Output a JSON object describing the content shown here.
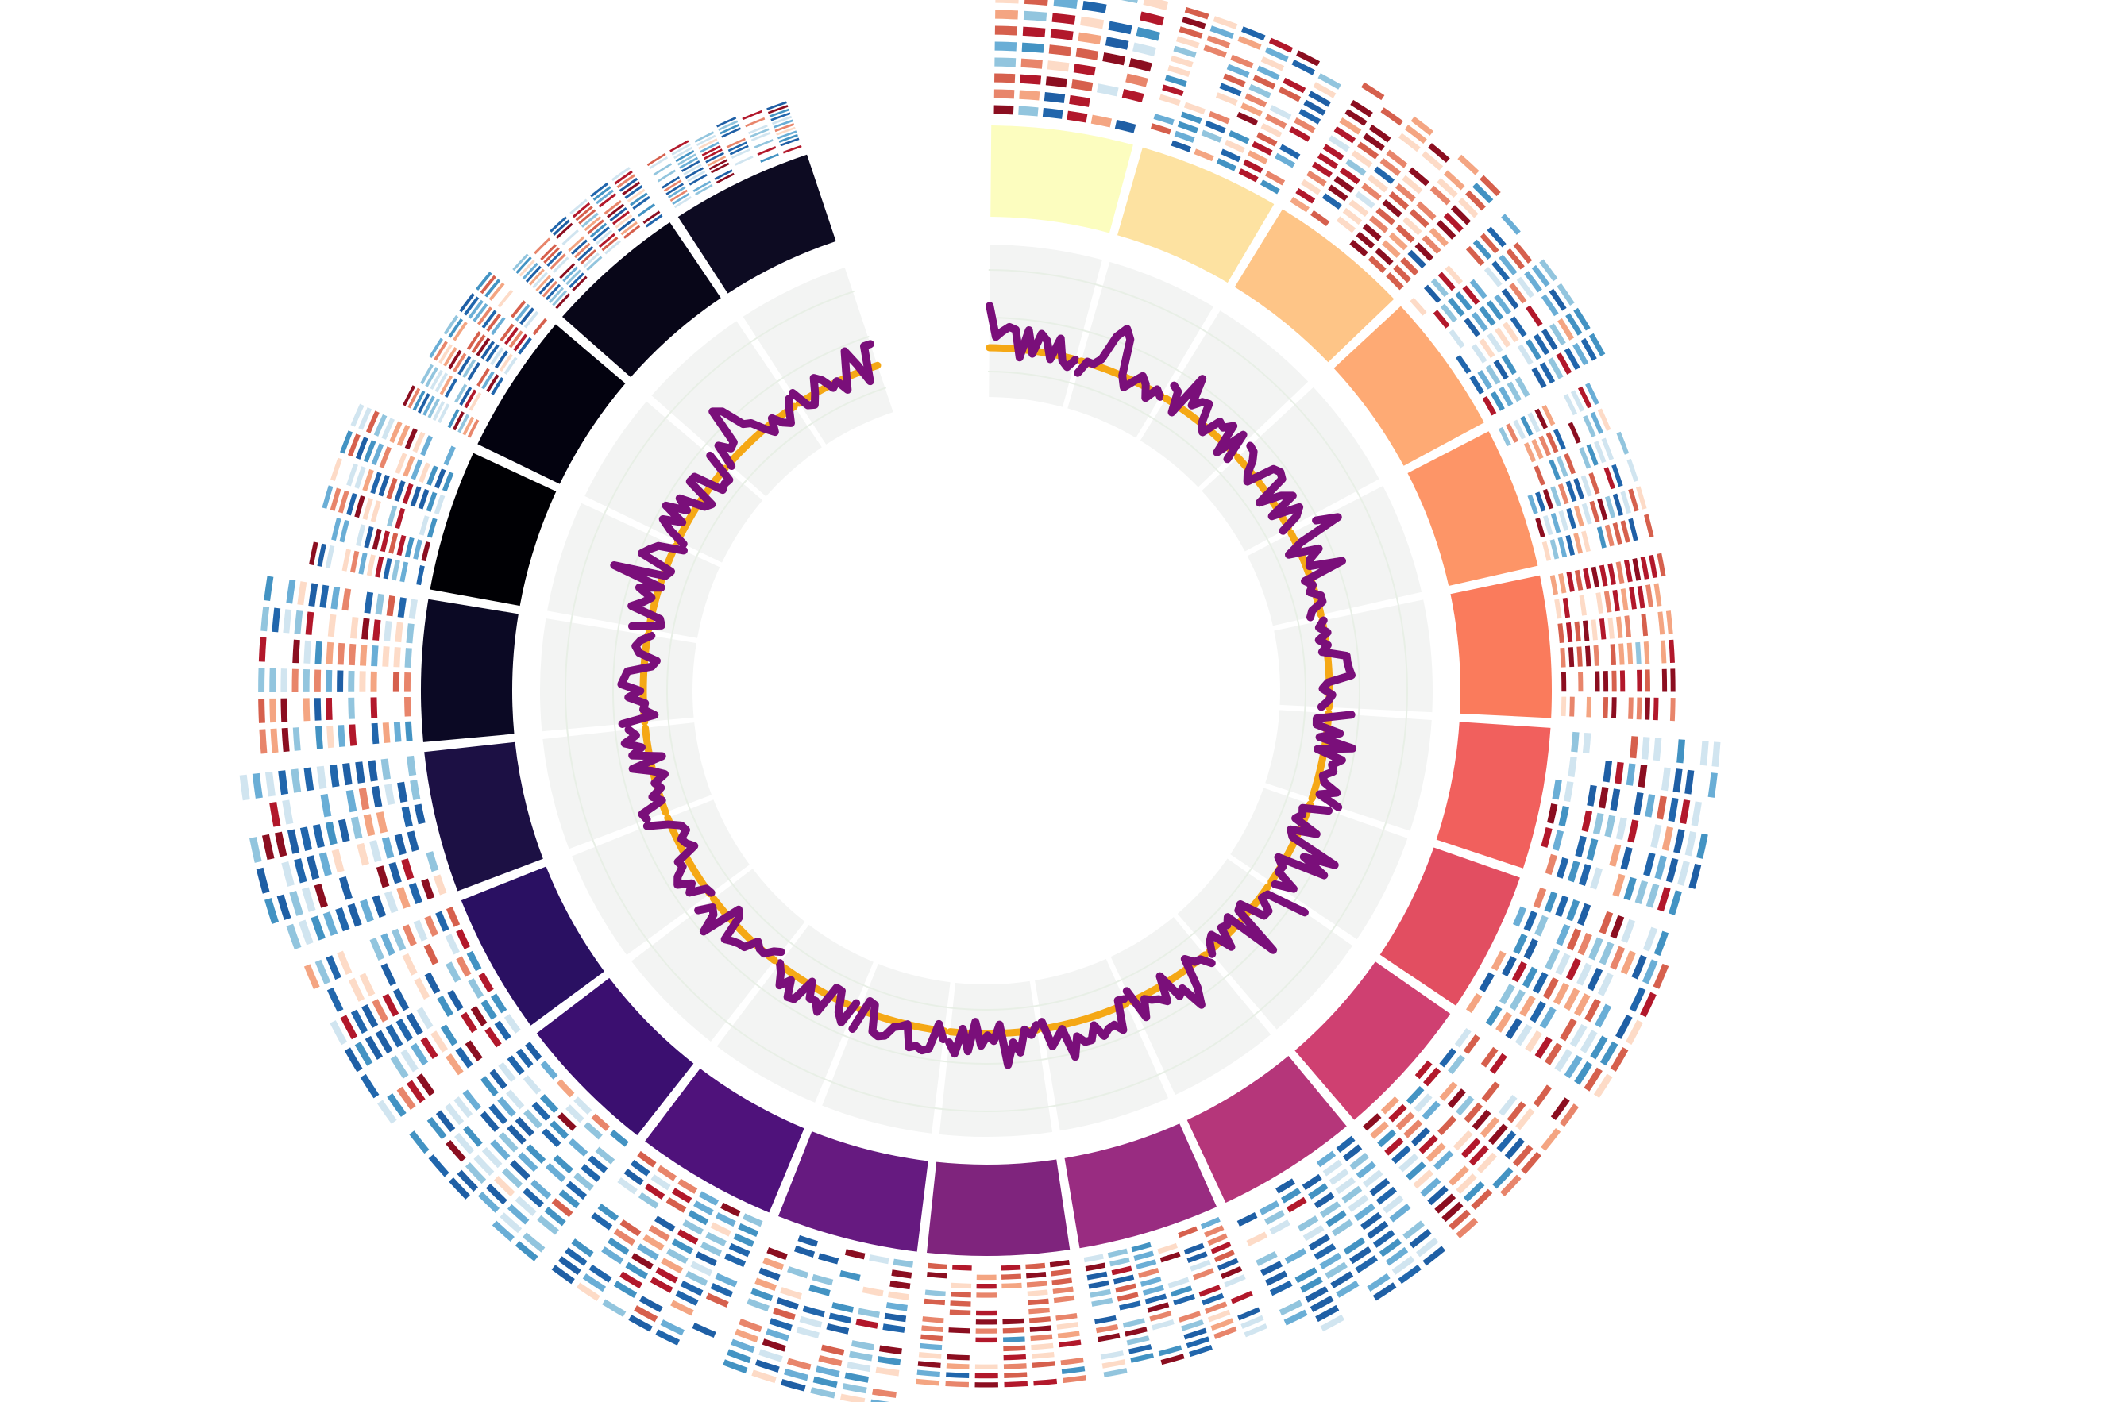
{
  "chart_data": {
    "type": "circos",
    "title": "",
    "sectors": {
      "count": 22,
      "gap_after_last_deg": 18,
      "colormap": "magma",
      "colors": [
        "#fcfdbf",
        "#fde2a1",
        "#fec587",
        "#feaa74",
        "#fd9567",
        "#fa7b5c",
        "#f1605d",
        "#e24e61",
        "#cf4071",
        "#b5367a",
        "#992c81",
        "#7f247d",
        "#661a80",
        "#4f127b",
        "#3b0f70",
        "#2a1062",
        "#1c1044",
        "#0b0924",
        "#000004",
        "#03020f",
        "#080618",
        "#0d0b22"
      ]
    },
    "tracks": [
      {
        "name": "sector-ideogram",
        "kind": "colored band"
      },
      {
        "name": "line-track",
        "kind": "line",
        "color": "#7a0f7a",
        "baseline_color": "#f5a815",
        "background": "#f3f4f3"
      },
      {
        "name": "heatmap-track",
        "kind": "heatmap",
        "colormap": "RdBu",
        "rows_per_sector": 10
      }
    ]
  }
}
